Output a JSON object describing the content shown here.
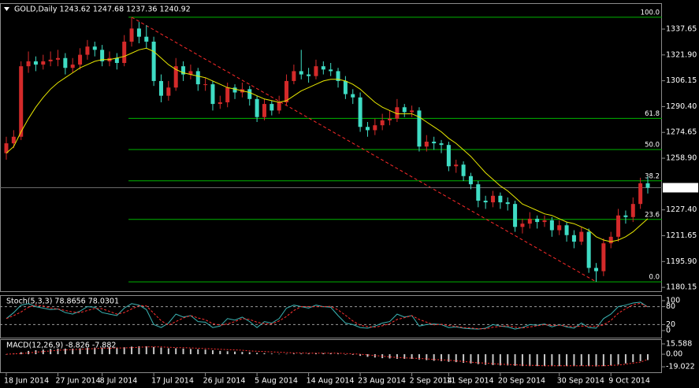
{
  "chart_data": [
    {
      "type": "candlestick",
      "title": "GOLD,Daily  1243.62 1247.68 1237.36 1240.92",
      "categories": [
        "18 Jun 2014",
        null,
        null,
        null,
        null,
        null,
        null,
        "27 Jun 2014",
        null,
        null,
        null,
        null,
        null,
        "8 Jul 2014",
        null,
        null,
        null,
        null,
        null,
        null,
        "17 Jul 2014",
        null,
        null,
        null,
        null,
        null,
        null,
        "26 Jul 2014",
        null,
        null,
        null,
        null,
        null,
        null,
        "5 Aug 2014",
        null,
        null,
        null,
        null,
        null,
        null,
        "14 Aug 2014",
        null,
        null,
        null,
        null,
        null,
        null,
        "23 Aug 2014",
        null,
        null,
        null,
        null,
        null,
        null,
        "2 Sep 2014",
        null,
        null,
        null,
        null,
        "11 Sep 2014",
        null,
        null,
        null,
        null,
        null,
        null,
        "20 Sep 2014",
        null,
        null,
        null,
        null,
        null,
        null,
        null,
        "30 Sep 2014",
        null,
        null,
        null,
        null,
        null,
        null,
        "9 Oct 2014",
        null,
        null,
        null,
        null,
        null
      ],
      "open": [
        1262,
        1268,
        1272,
        1315,
        1318,
        1316,
        1318,
        1319,
        1320,
        1314,
        1316,
        1322,
        1327,
        1325,
        1318,
        1320,
        1317,
        1330,
        1338,
        1333,
        1330,
        1306,
        1297,
        1302,
        1315,
        1310,
        1312,
        1304,
        1304,
        1292,
        1293,
        1302,
        1299,
        1301,
        1295,
        1284,
        1292,
        1288,
        1293,
        1306,
        1312,
        1310,
        1309,
        1315,
        1313,
        1312,
        1306,
        1298,
        1296,
        1278,
        1276,
        1279,
        1282,
        1283,
        1290,
        1287,
        1288,
        1266,
        1269,
        1268,
        1267,
        1254,
        1255,
        1248,
        1243,
        1233,
        1232,
        1236,
        1232,
        1231,
        1217,
        1219,
        1222,
        1220,
        1221,
        1215,
        1218,
        1212,
        1208,
        1214,
        1192,
        1190,
        1207,
        1211,
        1224,
        1223,
        1231,
        1243.62
      ],
      "high": [
        1272,
        1276,
        1318,
        1324,
        1321,
        1322,
        1324,
        1325,
        1323,
        1320,
        1326,
        1331,
        1330,
        1328,
        1324,
        1323,
        1334,
        1344.9,
        1342,
        1340,
        1333,
        1310,
        1306,
        1320,
        1318,
        1316,
        1314,
        1308,
        1306,
        1297,
        1305,
        1304,
        1305,
        1303,
        1297,
        1295,
        1294,
        1297,
        1310,
        1316,
        1325,
        1314,
        1319,
        1318,
        1317,
        1314,
        1309,
        1301,
        1299,
        1281,
        1283,
        1286,
        1288,
        1295,
        1292,
        1291,
        1290,
        1273,
        1272,
        1270,
        1269,
        1258,
        1257,
        1250,
        1245,
        1236,
        1239,
        1238,
        1235,
        1233,
        1222,
        1226,
        1224,
        1224,
        1223,
        1221,
        1220,
        1215,
        1217,
        1216,
        1195,
        1210,
        1214,
        1228,
        1227,
        1235,
        1247,
        1247.68
      ],
      "low": [
        1258,
        1265,
        1270,
        1311,
        1312,
        1313,
        1315,
        1315,
        1310,
        1311,
        1313,
        1319,
        1321,
        1315,
        1315,
        1313,
        1315,
        1327,
        1329,
        1326,
        1303,
        1293,
        1294,
        1300,
        1306,
        1307,
        1300,
        1300,
        1288,
        1289,
        1290,
        1295,
        1296,
        1291,
        1281,
        1282,
        1285,
        1286,
        1291,
        1304,
        1307,
        1305,
        1307,
        1310,
        1309,
        1302,
        1295,
        1292,
        1275,
        1272,
        1273,
        1276,
        1279,
        1281,
        1284,
        1284,
        1263,
        1263,
        1264,
        1262,
        1251,
        1250,
        1245,
        1240,
        1229,
        1228,
        1229,
        1228,
        1227,
        1214,
        1213,
        1216,
        1216,
        1217,
        1211,
        1212,
        1208,
        1204,
        1206,
        1189,
        1183.5,
        1187,
        1204,
        1208,
        1219,
        1220,
        1228,
        1237.36
      ],
      "close": [
        1268,
        1272,
        1315,
        1318,
        1316,
        1318,
        1319,
        1320,
        1314,
        1316,
        1322,
        1327,
        1325,
        1318,
        1320,
        1317,
        1330,
        1338,
        1333,
        1330,
        1306,
        1297,
        1302,
        1315,
        1310,
        1312,
        1304,
        1304,
        1292,
        1293,
        1302,
        1299,
        1301,
        1295,
        1284,
        1292,
        1288,
        1293,
        1306,
        1312,
        1310,
        1309,
        1315,
        1313,
        1312,
        1306,
        1298,
        1296,
        1278,
        1276,
        1279,
        1282,
        1283,
        1290,
        1287,
        1288,
        1266,
        1269,
        1268,
        1267,
        1254,
        1255,
        1248,
        1243,
        1233,
        1232,
        1236,
        1232,
        1231,
        1217,
        1219,
        1222,
        1220,
        1221,
        1215,
        1218,
        1212,
        1208,
        1214,
        1192,
        1190,
        1207,
        1211,
        1224,
        1223,
        1231,
        1243.62,
        1240.92
      ],
      "ma": [
        1262,
        1266,
        1275,
        1283,
        1290,
        1296,
        1301,
        1305,
        1308,
        1311,
        1314,
        1316,
        1318,
        1319,
        1319,
        1320,
        1321,
        1323,
        1325,
        1326,
        1324,
        1320,
        1316,
        1313,
        1311,
        1310,
        1309,
        1308,
        1306,
        1304,
        1302,
        1301,
        1300,
        1299,
        1297,
        1295,
        1294,
        1293,
        1294,
        1297,
        1300,
        1302,
        1304,
        1306,
        1307,
        1307,
        1306,
        1304,
        1301,
        1297,
        1293,
        1290,
        1288,
        1286,
        1286,
        1286,
        1284,
        1281,
        1278,
        1275,
        1271,
        1268,
        1264,
        1260,
        1255,
        1250,
        1246,
        1242,
        1239,
        1235,
        1231,
        1229,
        1227,
        1225,
        1224,
        1222,
        1220,
        1219,
        1217,
        1215,
        1211,
        1209,
        1208,
        1209,
        1211,
        1214,
        1218,
        1222
      ],
      "fib_levels": [
        {
          "label": "100.0",
          "value": 1344.9
        },
        {
          "label": "61.8",
          "value": 1283.2
        },
        {
          "label": "50.0",
          "value": 1264.2
        },
        {
          "label": "38.2",
          "value": 1245.1
        },
        {
          "label": "23.6",
          "value": 1221.6
        },
        {
          "label": "0.0",
          "value": 1183.5
        }
      ],
      "ylim": [
        1177.8,
        1353
      ],
      "yticks": [
        1337.65,
        {
          "value": 1321.9,
          "label": "1321.90"
        },
        1306.15,
        {
          "value": 1290.4,
          "label": "1290.40"
        },
        1274.65,
        {
          "value": 1258.9,
          "label": "1258.90"
        },
        {
          "value": 1227.4,
          "label": "1227.40"
        },
        1211.65,
        {
          "value": 1195.9,
          "label": "1195.90"
        },
        1180.15
      ],
      "bull_color": "#d42a2a",
      "bear_color": "#3fdcc4",
      "ma_color": "#e8e800",
      "fib_color": "#00b400",
      "trend_color": "#ff2a2a",
      "last_color": "#6a6a6a"
    },
    {
      "type": "line",
      "title": "Stoch(5,3,3) 78.8656 78.0301",
      "series": [
        {
          "color": "#3ab4b4",
          "dashed": false,
          "values": [
            40,
            60,
            85,
            90,
            80,
            75,
            70,
            72,
            60,
            55,
            65,
            80,
            78,
            60,
            55,
            50,
            75,
            90,
            85,
            70,
            20,
            10,
            25,
            55,
            45,
            50,
            30,
            28,
            10,
            15,
            40,
            35,
            45,
            30,
            10,
            30,
            25,
            40,
            75,
            85,
            80,
            75,
            85,
            80,
            78,
            50,
            25,
            20,
            10,
            8,
            15,
            25,
            30,
            55,
            45,
            50,
            15,
            20,
            22,
            20,
            10,
            12,
            8,
            6,
            5,
            8,
            20,
            15,
            12,
            5,
            10,
            20,
            18,
            22,
            12,
            20,
            12,
            8,
            25,
            10,
            8,
            40,
            55,
            80,
            85,
            92,
            95,
            78.8656
          ]
        },
        {
          "color": "#ff3030",
          "dashed": true,
          "values": [
            40,
            50,
            62,
            78,
            85,
            82,
            75,
            72,
            67,
            62,
            60,
            67,
            74,
            73,
            64,
            55,
            60,
            72,
            83,
            82,
            58,
            33,
            18,
            30,
            42,
            50,
            42,
            36,
            23,
            18,
            22,
            30,
            40,
            37,
            28,
            23,
            22,
            32,
            47,
            67,
            80,
            80,
            80,
            80,
            81,
            69,
            51,
            32,
            18,
            13,
            11,
            16,
            23,
            37,
            43,
            50,
            37,
            28,
            19,
            21,
            17,
            14,
            10,
            9,
            6,
            6,
            11,
            14,
            16,
            11,
            9,
            12,
            16,
            20,
            17,
            18,
            15,
            13,
            15,
            14,
            14,
            19,
            34,
            58,
            73,
            86,
            91,
            78.0301
          ]
        }
      ],
      "ylim": [
        0,
        100
      ],
      "yticks": [
        100,
        80,
        20,
        0
      ]
    },
    {
      "type": "macd",
      "title": "MACD(12,26,9) -8.826 -7.882",
      "values": [
        0,
        1,
        3,
        5,
        6,
        7,
        8,
        8.5,
        8.5,
        8.5,
        9,
        9.5,
        10,
        10,
        10,
        10,
        10.5,
        11.5,
        12,
        12,
        11,
        10,
        9,
        9,
        8.5,
        8,
        7.5,
        7,
        6,
        5,
        4.5,
        4,
        3.5,
        3,
        2,
        1.5,
        1,
        0.5,
        0.5,
        1,
        1,
        1,
        1.5,
        1.5,
        1.5,
        1,
        0,
        -1,
        -2.5,
        -4,
        -5,
        -6,
        -6.5,
        -7,
        -7,
        -7,
        -8,
        -9,
        -10,
        -10.5,
        -11.5,
        -12,
        -13,
        -14,
        -15,
        -16,
        -16.5,
        -17,
        -17,
        -17.5,
        -18,
        -18,
        -18,
        -18,
        -18,
        -18,
        -18,
        -18,
        -17.5,
        -18,
        -18.5,
        -18,
        -17,
        -15.5,
        -14,
        -12,
        -10.5,
        -8.826
      ],
      "signal": [
        0,
        0.5,
        1,
        2,
        3,
        4,
        5,
        6,
        6.5,
        7,
        7.5,
        8,
        8.5,
        9,
        9,
        9.5,
        9.5,
        10,
        10.5,
        11,
        11,
        11,
        10.5,
        10,
        10,
        9.5,
        9,
        8.5,
        8,
        7.5,
        7,
        6.5,
        6,
        5,
        4.5,
        4,
        3.5,
        3,
        2.5,
        2,
        2,
        1.5,
        1.5,
        1.5,
        1.5,
        1.5,
        1,
        0.5,
        0,
        -1,
        -2,
        -3,
        -4,
        -5,
        -5.5,
        -6,
        -6.5,
        -7,
        -8,
        -8.5,
        -9,
        -10,
        -11,
        -12,
        -13,
        -13.5,
        -14.5,
        -15,
        -15.5,
        -16,
        -16.5,
        -17,
        -17,
        -17.5,
        -17.5,
        -17.5,
        -17.5,
        -17.5,
        -17.5,
        -17.5,
        -17.5,
        -17.5,
        -17,
        -16.5,
        -15,
        -13.5,
        -12,
        -7.882
      ],
      "hist_color": "#c8c8c8",
      "signal_color": "#ff3030",
      "ylim": [
        -28.5,
        21.5
      ],
      "yticks": [
        15.588,
        {
          "value": 0,
          "label": "0.00"
        },
        -19.022
      ]
    }
  ]
}
